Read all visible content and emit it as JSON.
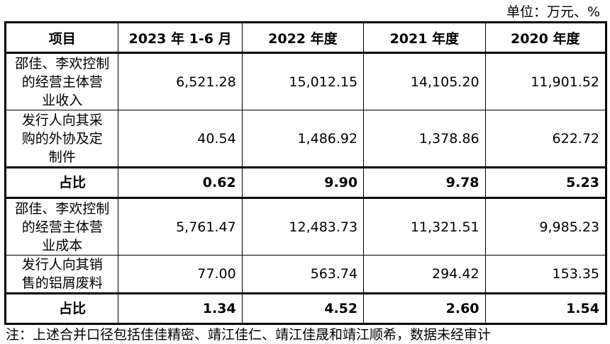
{
  "unit": "单位：万元、%",
  "headers": [
    "项目",
    "2023 年 1-6 月",
    "2022 年度",
    "2021 年度",
    "2020 年度"
  ],
  "rows": [
    {
      "label": [
        "邵佳、李欢控制",
        "的经营主体营",
        "业收入"
      ],
      "values": [
        "6,521.28",
        "15,012.15",
        "14,105.20",
        "11,901.52"
      ]
    },
    {
      "label": [
        "发行人向其采",
        "购的外协及定",
        "制件"
      ],
      "values": [
        "40.54",
        "1,486.92",
        "1,378.86",
        "622.72"
      ]
    },
    {
      "label": [
        "占比"
      ],
      "values": [
        "0.62",
        "9.90",
        "9.78",
        "5.23"
      ]
    },
    {
      "label": [
        "邵佳、李欢控制",
        "的经营主体营",
        "业成本"
      ],
      "values": [
        "5,761.47",
        "12,483.73",
        "11,321.51",
        "9,985.23"
      ]
    },
    {
      "label": [
        "发行人向其销",
        "售的铝屑废料"
      ],
      "values": [
        "77.00",
        "563.74",
        "294.42",
        "153.35"
      ]
    },
    {
      "label": [
        "占比"
      ],
      "values": [
        "1.34",
        "4.52",
        "2.60",
        "1.54"
      ]
    }
  ],
  "note": "注：上述合并口径包括佳佳精密、靖江佳仁、靖江佳晟和靖江顺希，数据未经审计"
}
